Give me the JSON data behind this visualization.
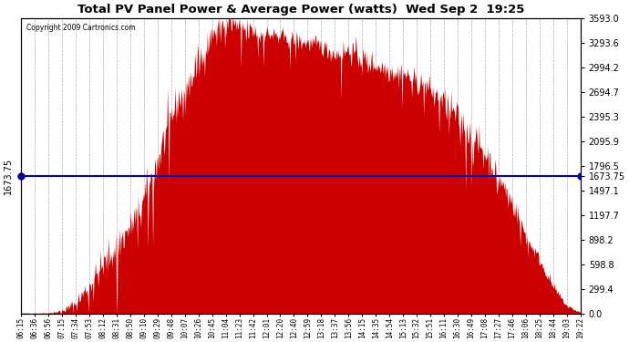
{
  "title": "Total PV Panel Power & Average Power (watts)  Wed Sep 2  19:25",
  "copyright": "Copyright 2009 Cartronics.com",
  "avg_power": 1673.75,
  "ymax": 3593.0,
  "ymin": 0.0,
  "right_yticks": [
    0.0,
    299.4,
    598.8,
    898.2,
    1197.7,
    1497.1,
    1796.5,
    2095.9,
    2395.3,
    2694.7,
    2994.2,
    3293.6,
    3593.0
  ],
  "left_ytick_label": "1673.75",
  "bar_color": "#cc0000",
  "avg_line_color": "#0000bb",
  "grid_color": "#999999",
  "bg_color": "#ffffff",
  "x_labels": [
    "06:15",
    "06:36",
    "06:56",
    "07:15",
    "07:34",
    "07:53",
    "08:12",
    "08:31",
    "08:50",
    "09:10",
    "09:29",
    "09:48",
    "10:07",
    "10:26",
    "10:45",
    "11:04",
    "11:23",
    "11:42",
    "12:01",
    "12:20",
    "12:40",
    "12:59",
    "13:18",
    "13:37",
    "13:56",
    "14:15",
    "14:35",
    "14:54",
    "15:13",
    "15:32",
    "15:51",
    "16:11",
    "16:30",
    "16:49",
    "17:08",
    "17:27",
    "17:46",
    "18:06",
    "18:25",
    "18:44",
    "19:03",
    "19:22"
  ],
  "envelope_values": [
    3,
    3,
    5,
    30,
    120,
    350,
    580,
    820,
    1050,
    1380,
    1850,
    2400,
    2750,
    3050,
    3400,
    3550,
    3480,
    3430,
    3400,
    3370,
    3320,
    3290,
    3250,
    3150,
    3200,
    3100,
    3020,
    2960,
    2920,
    2820,
    2720,
    2560,
    2380,
    2150,
    1950,
    1650,
    1350,
    950,
    650,
    320,
    90,
    12
  ],
  "noise_scale": [
    2,
    2,
    3,
    15,
    50,
    80,
    100,
    120,
    100,
    120,
    150,
    120,
    100,
    120,
    80,
    120,
    100,
    80,
    60,
    60,
    60,
    60,
    60,
    60,
    80,
    80,
    80,
    80,
    80,
    80,
    80,
    100,
    100,
    100,
    100,
    80,
    80,
    60,
    40,
    30,
    15,
    5
  ],
  "n_points_total": 800
}
